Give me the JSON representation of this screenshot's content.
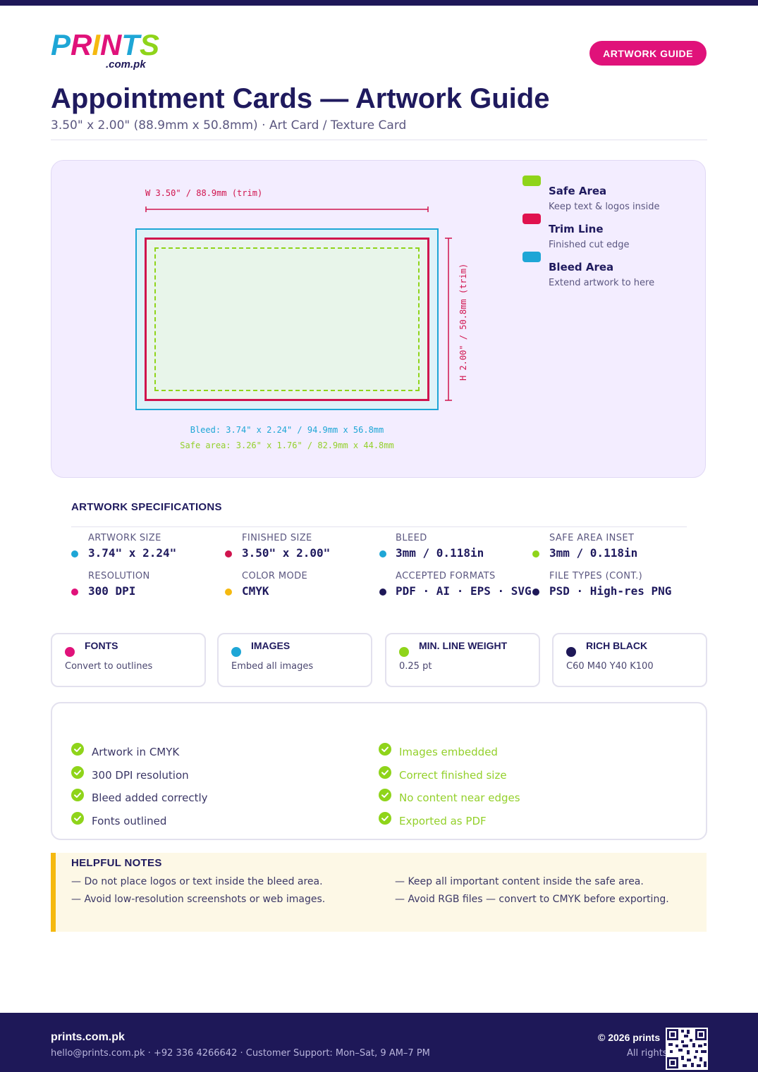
{
  "brand": {
    "logo_text": "PRINTS",
    "logo_domain": ".com.pk",
    "logo_colors": [
      "#1ea6d6",
      "#e0127a",
      "#f5b90f",
      "#8fd41a"
    ]
  },
  "header": {
    "badge": "ARTWORK GUIDE",
    "title": "Appointment Cards — Artwork Guide",
    "subtitle": "3.50\" x 2.00\" (88.9mm x 50.8mm) · Art Card / Texture Card"
  },
  "diagram": {
    "width_label": "W 3.50\" / 88.9mm (trim)",
    "height_label": "H 2.00\" / 50.8mm (trim)",
    "bleed_label": "Bleed: 3.74\" x 2.24\" / 94.9mm x 56.8mm",
    "safe_label": "Safe area: 3.26\" x 1.76\" / 82.9mm x 44.8mm",
    "legend": [
      {
        "title": "Safe Area",
        "desc": "Keep text & logos inside",
        "color": "#8fd41a"
      },
      {
        "title": "Trim Line",
        "desc": "Finished cut edge",
        "color": "#d0144e"
      },
      {
        "title": "Bleed Area",
        "desc": "Extend artwork to here",
        "color": "#1ea6d6"
      }
    ]
  },
  "specs": {
    "heading": "ARTWORK SPECIFICATIONS",
    "items": [
      {
        "label": "ARTWORK SIZE",
        "value": "3.74\" x 2.24\"",
        "color": "#1ea6d6"
      },
      {
        "label": "FINISHED SIZE",
        "value": "3.50\" x 2.00\"",
        "color": "#d0144e"
      },
      {
        "label": "BLEED",
        "value": "3mm / 0.118in",
        "color": "#1ea6d6"
      },
      {
        "label": "SAFE AREA INSET",
        "value": "3mm / 0.118in",
        "color": "#8fd41a"
      },
      {
        "label": "RESOLUTION",
        "value": "300 DPI",
        "color": "#e0127a"
      },
      {
        "label": "COLOR MODE",
        "value": "CMYK",
        "color": "#f5b90f"
      },
      {
        "label": "ACCEPTED FORMATS",
        "value": "PDF · AI · EPS · SVG",
        "color": "#1e1858"
      },
      {
        "label": "FILE TYPES (CONT.)",
        "value": "PSD · High-res PNG",
        "color": "#1e1858"
      }
    ]
  },
  "cards": [
    {
      "title": "FONTS",
      "desc": "Convert to outlines",
      "color": "#e0127a"
    },
    {
      "title": "IMAGES",
      "desc": "Embed all images",
      "color": "#1ea6d6"
    },
    {
      "title": "MIN. LINE WEIGHT",
      "desc": "0.25 pt",
      "color": "#8fd41a"
    },
    {
      "title": "RICH BLACK",
      "desc": "C60 M40 Y40 K100",
      "color": "#1e1858"
    }
  ],
  "checklist": {
    "left": [
      "Artwork in CMYK",
      "300 DPI resolution",
      "Bleed added correctly",
      "Fonts outlined"
    ],
    "right": [
      "Images embedded",
      "Correct finished size",
      "No content near edges",
      "Exported as PDF"
    ],
    "check_color": "#8fd41a"
  },
  "notes": {
    "heading": "HELPFUL NOTES",
    "left": [
      "— Do not place logos or text inside the bleed area.",
      "— Avoid low-resolution screenshots or web images."
    ],
    "right": [
      "— Keep all important content inside the safe area.",
      "— Avoid RGB files — convert to CMYK before exporting."
    ]
  },
  "footer": {
    "site": "prints.com.pk",
    "contact": "hello@prints.com.pk · +92 336 4266642 · Customer Support: Mon–Sat, 9 AM–7 PM",
    "copyright": "© 2026 prints",
    "rights": "All rights"
  }
}
